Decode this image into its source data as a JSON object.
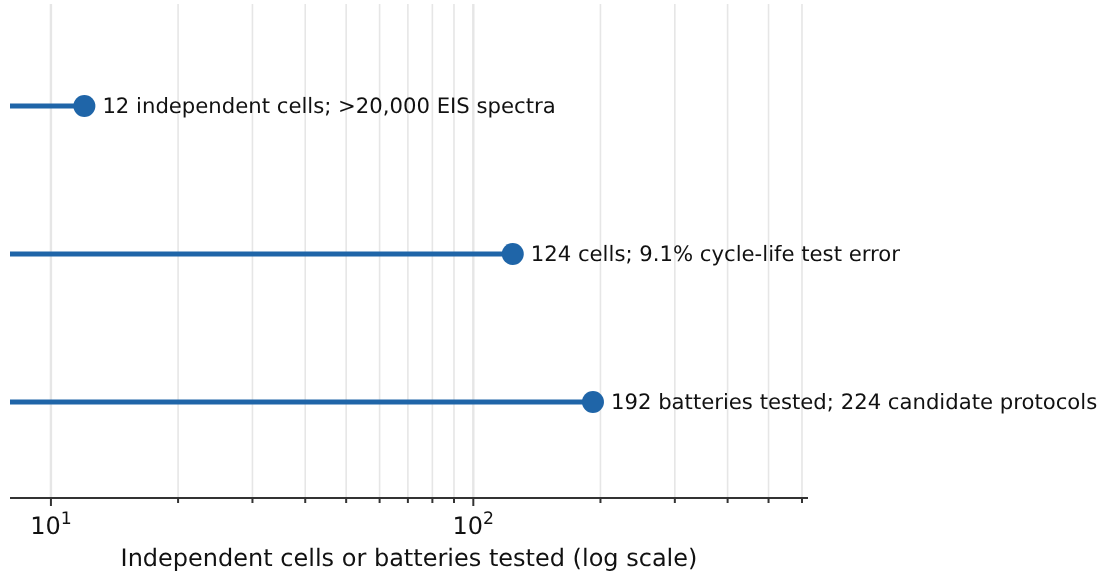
{
  "chart_data": {
    "type": "lollipop",
    "orientation": "horizontal",
    "categories": [
      null,
      null,
      null
    ],
    "values": [
      12,
      124,
      192
    ],
    "value_labels": [
      "12 independent cells; >20,000 EIS spectra",
      "124 cells; 9.1% cycle-life test error",
      "192 batteries tested; 224 candidate protocols"
    ],
    "color": "#1f65a8",
    "xlabel": "Independent cells or batteries tested (log scale)",
    "log": "x",
    "xlim": [
      8,
      620
    ],
    "xticks": [
      {
        "value": 10,
        "label": "10$^{1}$"
      },
      {
        "value": 20,
        "label": null
      },
      {
        "value": 30,
        "label": null
      },
      {
        "value": 40,
        "label": null
      },
      {
        "value": 50,
        "label": null
      },
      {
        "value": 60,
        "label": null
      },
      {
        "value": 70,
        "label": null
      },
      {
        "value": 80,
        "label": null
      },
      {
        "value": 90,
        "label": null
      },
      {
        "value": 100,
        "label": "10$^{2}$"
      },
      {
        "value": 200,
        "label": null
      },
      {
        "value": 300,
        "label": null
      },
      {
        "value": 400,
        "label": null
      },
      {
        "value": 500,
        "label": null
      },
      {
        "value": 600,
        "label": null
      }
    ],
    "grid": "x",
    "marker": "circle"
  }
}
